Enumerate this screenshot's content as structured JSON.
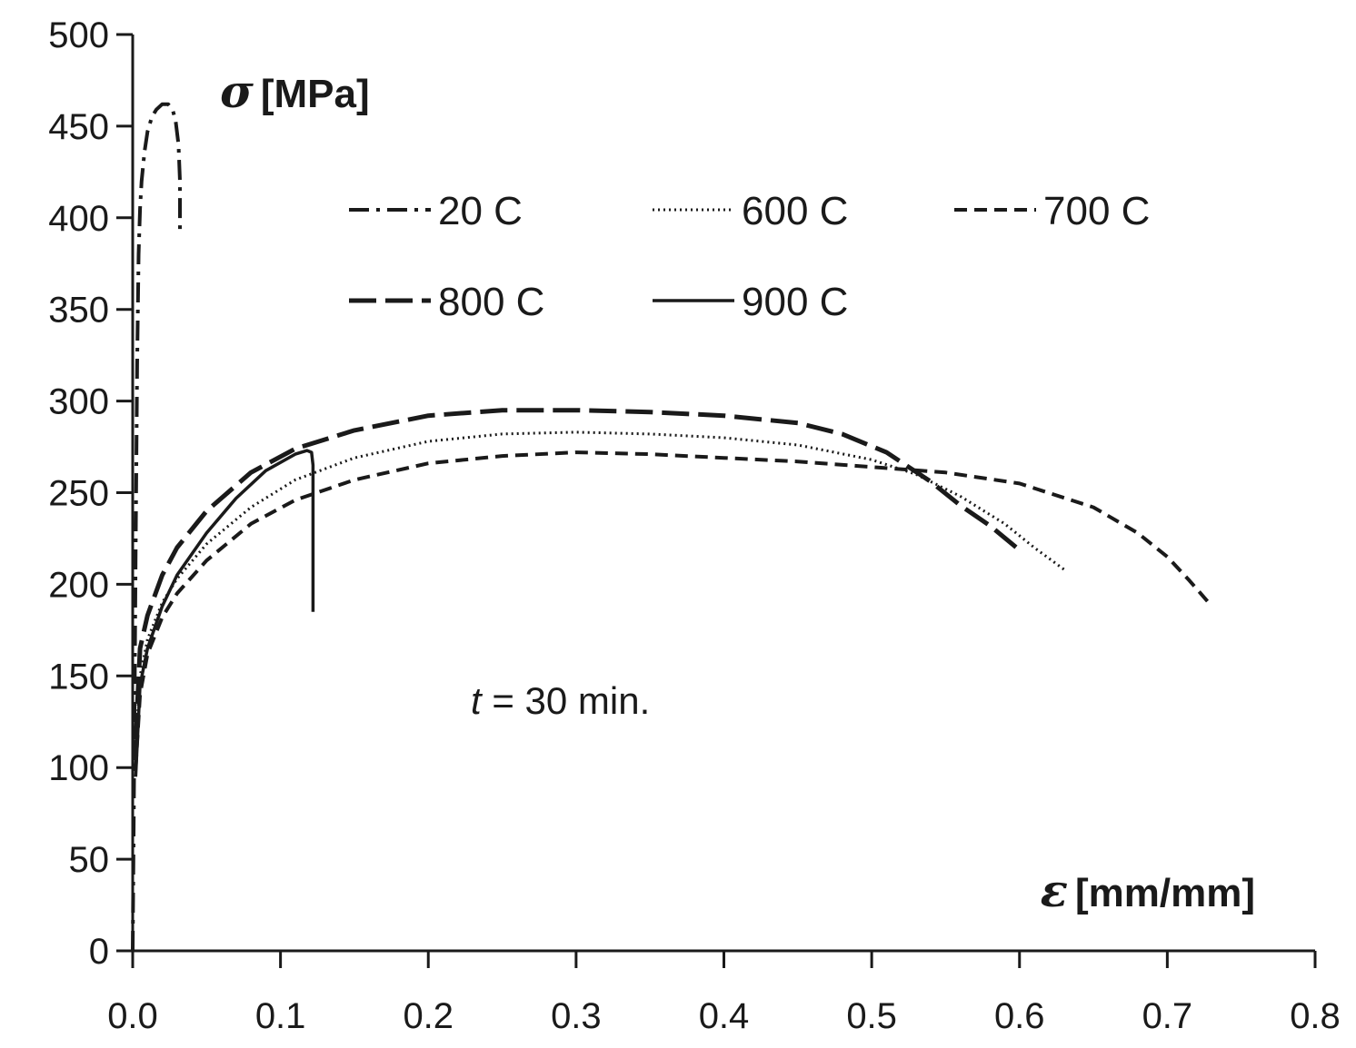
{
  "chart_data": {
    "type": "line",
    "title": "",
    "xlabel_symbol": "ε",
    "xlabel_unit": "[mm/mm]",
    "ylabel_symbol": "σ",
    "ylabel_unit": "[MPa]",
    "xlim": [
      0.0,
      0.8
    ],
    "ylim": [
      0,
      500
    ],
    "xticks": [
      0.0,
      0.1,
      0.2,
      0.3,
      0.4,
      0.5,
      0.6,
      0.7,
      0.8
    ],
    "xtick_labels": [
      "0.0",
      "0.1",
      "0.2",
      "0.3",
      "0.4",
      "0.5",
      "0.6",
      "0.7",
      "0.8"
    ],
    "yticks": [
      0,
      50,
      100,
      150,
      200,
      250,
      300,
      350,
      400,
      450,
      500
    ],
    "ytick_labels": [
      "0",
      "50",
      "100",
      "150",
      "200",
      "250",
      "300",
      "350",
      "400",
      "450",
      "500"
    ],
    "grid": false,
    "legend_placement": "top-center",
    "annotation_italic": "t",
    "annotation_rest": "= 30 min.",
    "series": [
      {
        "name": "20 C",
        "style": "dash-dot",
        "x": [
          0,
          0.001,
          0.002,
          0.003,
          0.004,
          0.005,
          0.006,
          0.008,
          0.01,
          0.013,
          0.016,
          0.02,
          0.024,
          0.027,
          0.029,
          0.031,
          0.032,
          0.032,
          0.032,
          0.032
        ],
        "y": [
          0,
          100,
          220,
          320,
          380,
          405,
          420,
          436,
          447,
          455,
          459,
          462,
          462,
          459,
          453,
          440,
          420,
          405,
          395,
          390
        ]
      },
      {
        "name": "600 C",
        "style": "dotted",
        "x": [
          0.002,
          0.005,
          0.01,
          0.02,
          0.03,
          0.05,
          0.08,
          0.11,
          0.15,
          0.2,
          0.25,
          0.3,
          0.35,
          0.4,
          0.45,
          0.5,
          0.53,
          0.56,
          0.59,
          0.61,
          0.632
        ],
        "y": [
          110,
          150,
          170,
          190,
          203,
          222,
          242,
          257,
          269,
          278,
          282,
          283,
          282,
          280,
          276,
          268,
          260,
          248,
          233,
          220,
          207
        ]
      },
      {
        "name": "700 C",
        "style": "short-dash",
        "x": [
          0.002,
          0.005,
          0.01,
          0.02,
          0.03,
          0.05,
          0.08,
          0.11,
          0.15,
          0.2,
          0.25,
          0.3,
          0.35,
          0.4,
          0.45,
          0.5,
          0.55,
          0.6,
          0.65,
          0.68,
          0.7,
          0.715,
          0.728
        ],
        "y": [
          100,
          140,
          162,
          182,
          195,
          213,
          233,
          246,
          257,
          266,
          270,
          272,
          271,
          269,
          267,
          264,
          261,
          255,
          242,
          228,
          215,
          202,
          190
        ]
      },
      {
        "name": "800 C",
        "style": "long-dash",
        "x": [
          0.002,
          0.005,
          0.01,
          0.02,
          0.03,
          0.05,
          0.08,
          0.11,
          0.15,
          0.2,
          0.25,
          0.3,
          0.35,
          0.4,
          0.45,
          0.48,
          0.51,
          0.54,
          0.56,
          0.58,
          0.598
        ],
        "y": [
          115,
          165,
          183,
          205,
          220,
          240,
          261,
          274,
          284,
          292,
          295,
          295,
          294,
          292,
          288,
          282,
          272,
          256,
          243,
          232,
          220
        ]
      },
      {
        "name": "900 C",
        "style": "solid",
        "x": [
          0.002,
          0.005,
          0.01,
          0.02,
          0.03,
          0.05,
          0.07,
          0.09,
          0.11,
          0.118,
          0.121,
          0.122,
          0.122,
          0.122
        ],
        "y": [
          95,
          145,
          165,
          188,
          205,
          228,
          247,
          262,
          271,
          273,
          272,
          265,
          230,
          185
        ]
      }
    ]
  }
}
